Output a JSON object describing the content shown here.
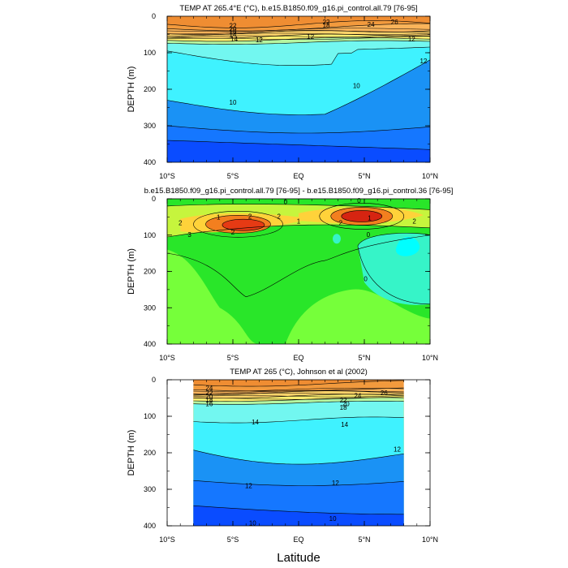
{
  "chart_data": [
    {
      "type": "contour",
      "title": "TEMP AT 265.4°E (°C), b.e15.B1850.f09_g16.pi_control.all.79 [76-95]",
      "ylabel": "DEPTH (m)",
      "xlabel": "",
      "x_ticks": [
        "10°S",
        "5°S",
        "EQ",
        "5°N",
        "10°N"
      ],
      "y_ticks": [
        "0",
        "100",
        "200",
        "300",
        "400"
      ],
      "ylim": [
        0,
        400
      ],
      "xlim": [
        -10,
        10
      ],
      "contour_levels": [
        10,
        12,
        14,
        16,
        18,
        20,
        22,
        24,
        26
      ],
      "contour_labels": [
        "26",
        "24",
        "22",
        "22",
        "20",
        "18",
        "16",
        "14",
        "14",
        "12",
        "12",
        "12",
        "12",
        "10",
        "10"
      ]
    },
    {
      "type": "contour",
      "title": "b.e15.B1850.f09_g16.pi_control.all.79 [76-95] - b.e15.B1850.f09_g16.pi_control.36 [76-95]",
      "ylabel": "DEPTH (m)",
      "xlabel": "",
      "x_ticks": [
        "10°S",
        "5°S",
        "EQ",
        "5°N",
        "10°N"
      ],
      "y_ticks": [
        "0",
        "100",
        "200",
        "300",
        "400"
      ],
      "ylim": [
        0,
        400
      ],
      "xlim": [
        -10,
        10
      ],
      "contour_levels": [
        -1,
        0,
        1,
        2,
        3,
        4
      ],
      "contour_labels": [
        "0",
        "0",
        "1",
        "1",
        "2",
        "2",
        "2",
        "2",
        "3",
        "1",
        "2",
        "2",
        "0",
        "0"
      ]
    },
    {
      "type": "contour",
      "title": "TEMP AT 265 (°C), Johnson et al (2002)",
      "ylabel": "DEPTH (m)",
      "xlabel": "Latitude",
      "x_ticks": [
        "10°S",
        "5°S",
        "EQ",
        "5°N",
        "10°N"
      ],
      "y_ticks": [
        "0",
        "100",
        "200",
        "300",
        "400"
      ],
      "ylim": [
        0,
        400
      ],
      "xlim": [
        -10,
        10
      ],
      "data_xlim": [
        -8,
        8
      ],
      "contour_levels": [
        10,
        12,
        14,
        16,
        18,
        20,
        22,
        24,
        26
      ],
      "contour_labels": [
        "24",
        "22",
        "20",
        "18",
        "16",
        "14",
        "14",
        "12",
        "12",
        "12",
        "10",
        "10",
        "22",
        "20",
        "18",
        "24",
        "26"
      ]
    }
  ]
}
